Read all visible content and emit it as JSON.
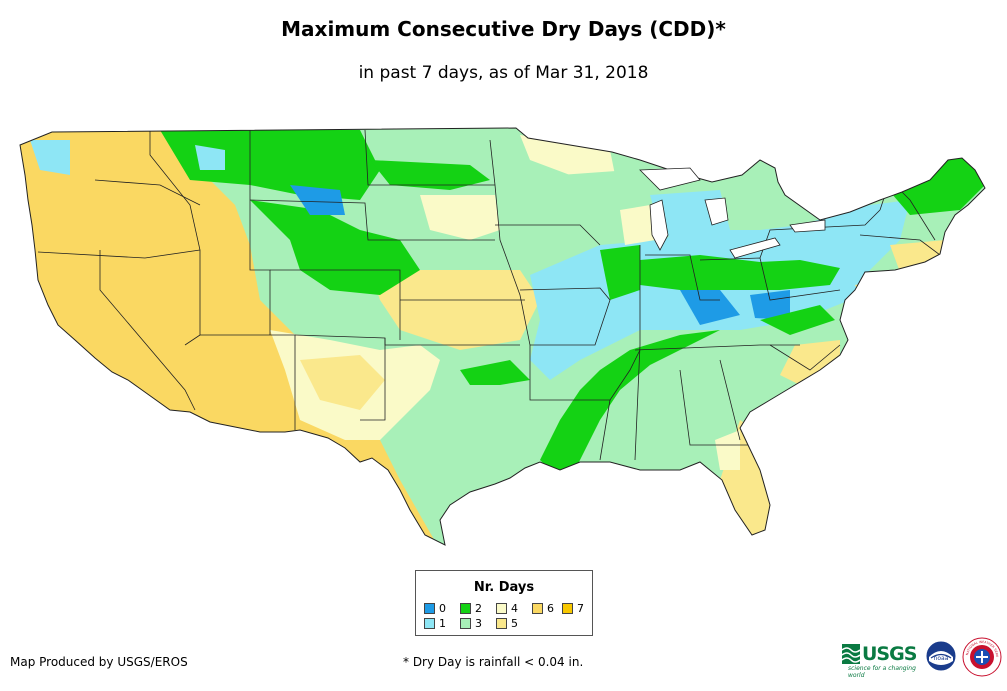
{
  "title": "Maximum Consecutive Dry Days (CDD)*",
  "subtitle": "in past 7 days, as of Mar 31, 2018",
  "legend": {
    "title": "Nr. Days",
    "items": [
      {
        "value": "0",
        "color": "#1e9be6"
      },
      {
        "value": "1",
        "color": "#8ee6f5"
      },
      {
        "value": "2",
        "color": "#14d214"
      },
      {
        "value": "3",
        "color": "#a8f0b8"
      },
      {
        "value": "4",
        "color": "#fafac8"
      },
      {
        "value": "5",
        "color": "#fae88c"
      },
      {
        "value": "6",
        "color": "#fad862"
      },
      {
        "value": "7",
        "color": "#f8c800"
      }
    ]
  },
  "credit": "Map Produced by USGS/EROS",
  "footnote": "* Dry Day is rainfall < 0.04 in.",
  "logos": {
    "usgs": "USGS",
    "usgs_tagline": "science for a changing world",
    "noaa": "noaa",
    "nws": "NATIONAL WEATHER SERVICE"
  }
}
